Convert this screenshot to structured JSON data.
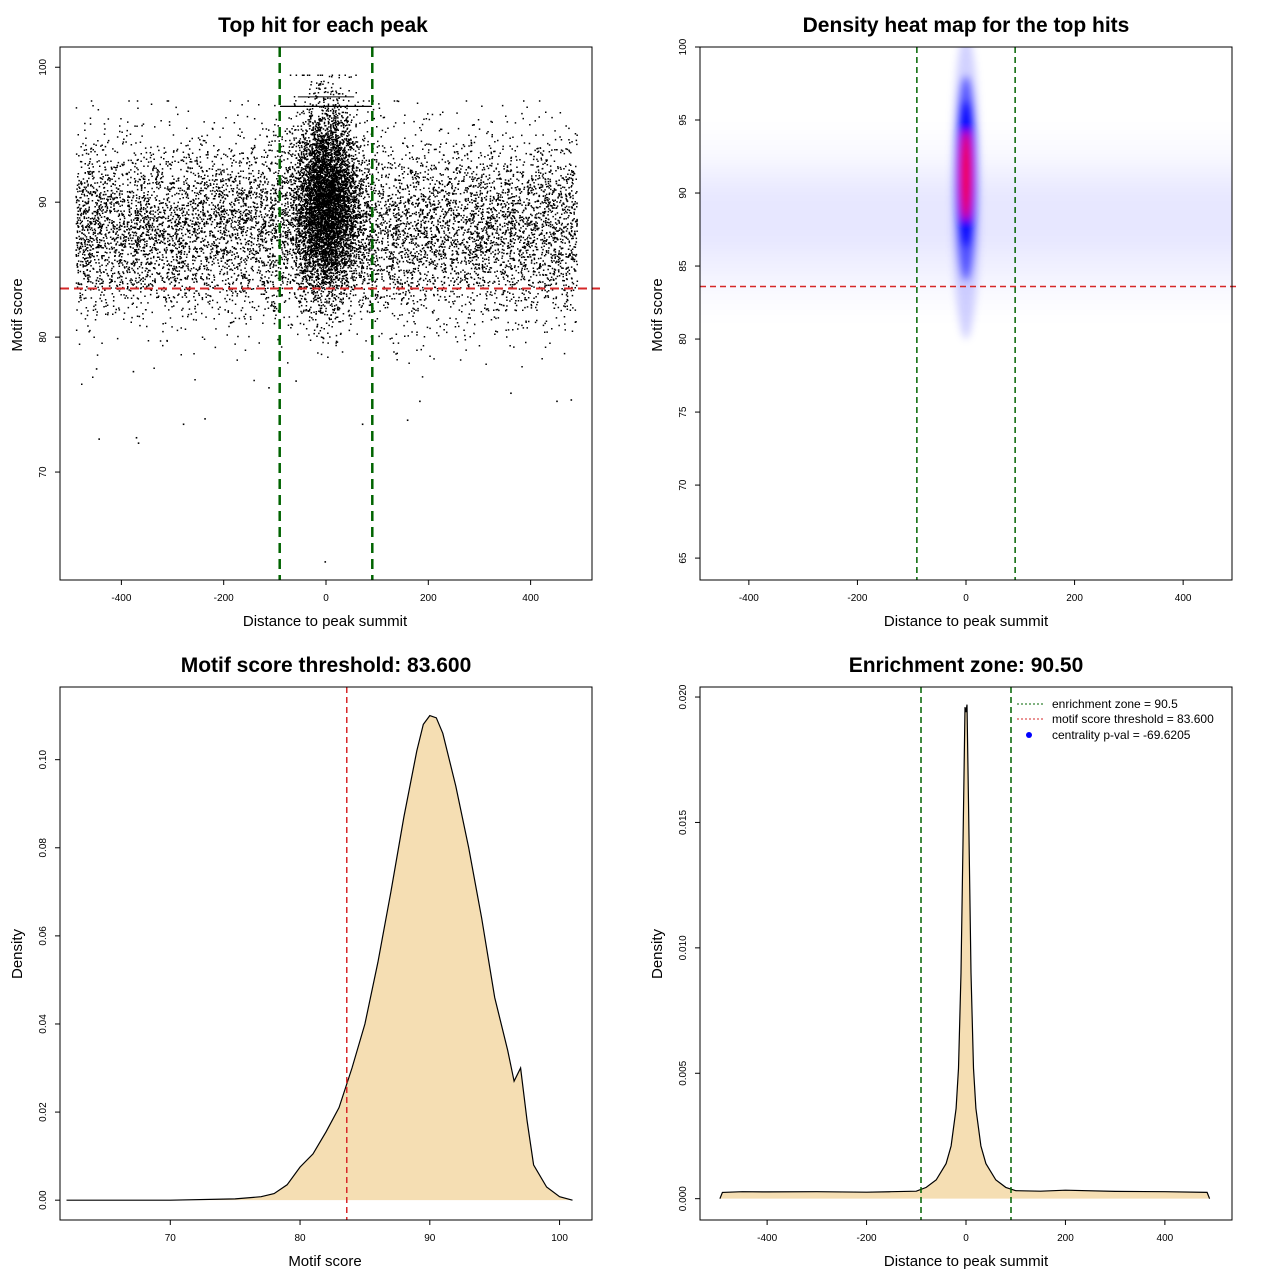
{
  "colors": {
    "enrichment_line": "#006400",
    "threshold_line": "#d62728",
    "density_fill": "#f5deb3",
    "heat_low": "#ffffff",
    "heat_mid": "#0000ff",
    "heat_high": "#ff0000",
    "points": "#000000"
  },
  "chart_data": [
    {
      "id": "scatter",
      "type": "scatter",
      "title": "Top hit for each peak",
      "xlabel": "Distance to peak summit",
      "ylabel": "Motif score",
      "xlim": [
        -520,
        520
      ],
      "ylim": [
        62,
        101.5
      ],
      "xticks": [
        -400,
        -200,
        0,
        200,
        400
      ],
      "yticks": [
        70,
        80,
        90,
        100
      ],
      "vlines": [
        -90.5,
        90.5
      ],
      "hline": 83.6,
      "outliers": [
        [
          -445,
          72.5
        ],
        [
          -372,
          72.6
        ],
        [
          -368,
          72.2
        ],
        [
          -280,
          73.6
        ],
        [
          -238,
          74.0
        ],
        [
          -113,
          76.3
        ],
        [
          -60,
          76.8
        ],
        [
          -3,
          63.4
        ],
        [
          70,
          73.6
        ],
        [
          158,
          73.9
        ],
        [
          360,
          75.9
        ],
        [
          450,
          75.3
        ],
        [
          478,
          75.4
        ],
        [
          182,
          75.3
        ],
        [
          -450,
          77.7
        ],
        [
          -378,
          77.5
        ]
      ]
    },
    {
      "id": "heatmap",
      "type": "heatmap",
      "title": "Density heat map for the top hits",
      "xlabel": "Distance to peak summit",
      "ylabel": "Motif score",
      "xlim": [
        -490,
        490
      ],
      "ylim": [
        63.5,
        100
      ],
      "xticks": [
        -400,
        -200,
        0,
        200,
        400
      ],
      "yticks": [
        65,
        70,
        75,
        80,
        85,
        90,
        95,
        100
      ],
      "vlines": [
        -90.5,
        90.5
      ],
      "hline": 83.6,
      "peak": {
        "x": 0,
        "y": 91.2
      }
    },
    {
      "id": "score_density",
      "type": "area",
      "title": "Motif score threshold: 83.600",
      "xlabel": "Motif score",
      "ylabel": "Density",
      "xlim": [
        61.5,
        102.5
      ],
      "ylim": [
        -0.0045,
        0.1165
      ],
      "xticks": [
        70,
        80,
        90,
        100
      ],
      "yticks": [
        0.0,
        0.02,
        0.04,
        0.06,
        0.08,
        0.1
      ],
      "ytick_labels": [
        "0.00",
        "0.02",
        "0.04",
        "0.06",
        "0.08",
        "0.10"
      ],
      "vline": 83.6,
      "x": [
        62,
        70,
        75,
        77,
        78,
        79,
        80,
        81,
        82,
        83,
        84,
        85,
        86,
        87,
        88,
        89,
        89.5,
        90,
        90.5,
        91,
        92,
        93,
        94,
        95,
        96,
        96.5,
        97,
        97.5,
        98,
        99,
        100,
        101
      ],
      "y": [
        0.0,
        0.0,
        0.0003,
        0.0008,
        0.0015,
        0.0035,
        0.0075,
        0.0105,
        0.0155,
        0.021,
        0.03,
        0.04,
        0.054,
        0.07,
        0.087,
        0.102,
        0.108,
        0.11,
        0.1095,
        0.106,
        0.094,
        0.08,
        0.064,
        0.046,
        0.034,
        0.027,
        0.03,
        0.018,
        0.008,
        0.003,
        0.0008,
        0.0
      ]
    },
    {
      "id": "distance_density",
      "type": "area",
      "title": "Enrichment zone: 90.50",
      "xlabel": "Distance to peak summit",
      "ylabel": "Density",
      "xlim": [
        -535,
        535
      ],
      "ylim": [
        -0.00085,
        0.0204
      ],
      "xticks": [
        -400,
        -200,
        0,
        200,
        400
      ],
      "yticks": [
        0.0,
        0.005,
        0.01,
        0.015,
        0.02
      ],
      "ytick_labels": [
        "0.000",
        "0.005",
        "0.010",
        "0.015",
        "0.020"
      ],
      "vlines": [
        -90.5,
        90.5
      ],
      "x": [
        -495,
        -490,
        -450,
        -400,
        -300,
        -200,
        -150,
        -100,
        -80,
        -60,
        -40,
        -30,
        -20,
        -15,
        -10,
        -5,
        -2,
        0,
        2,
        5,
        10,
        15,
        20,
        30,
        40,
        60,
        80,
        100,
        150,
        200,
        300,
        400,
        485,
        490
      ],
      "y": [
        0.0,
        0.00025,
        0.00028,
        0.00027,
        0.00028,
        0.00026,
        0.00028,
        0.0003,
        0.00045,
        0.00075,
        0.0014,
        0.0021,
        0.0036,
        0.0052,
        0.009,
        0.0155,
        0.0196,
        0.0194,
        0.0197,
        0.0158,
        0.009,
        0.0052,
        0.0036,
        0.0021,
        0.0014,
        0.00075,
        0.00045,
        0.00032,
        0.0003,
        0.00034,
        0.00029,
        0.00028,
        0.00025,
        0.0
      ],
      "legend": {
        "placement": "top-right",
        "entries": [
          {
            "label": "enrichment zone = 90.5",
            "style": "dotted",
            "color": "#006400"
          },
          {
            "label": "motif score threshold = 83.600",
            "style": "dotted",
            "color": "#d62728"
          },
          {
            "label": "centrality p-val = -69.6205",
            "style": "point",
            "color": "#0000ff"
          }
        ]
      }
    }
  ]
}
